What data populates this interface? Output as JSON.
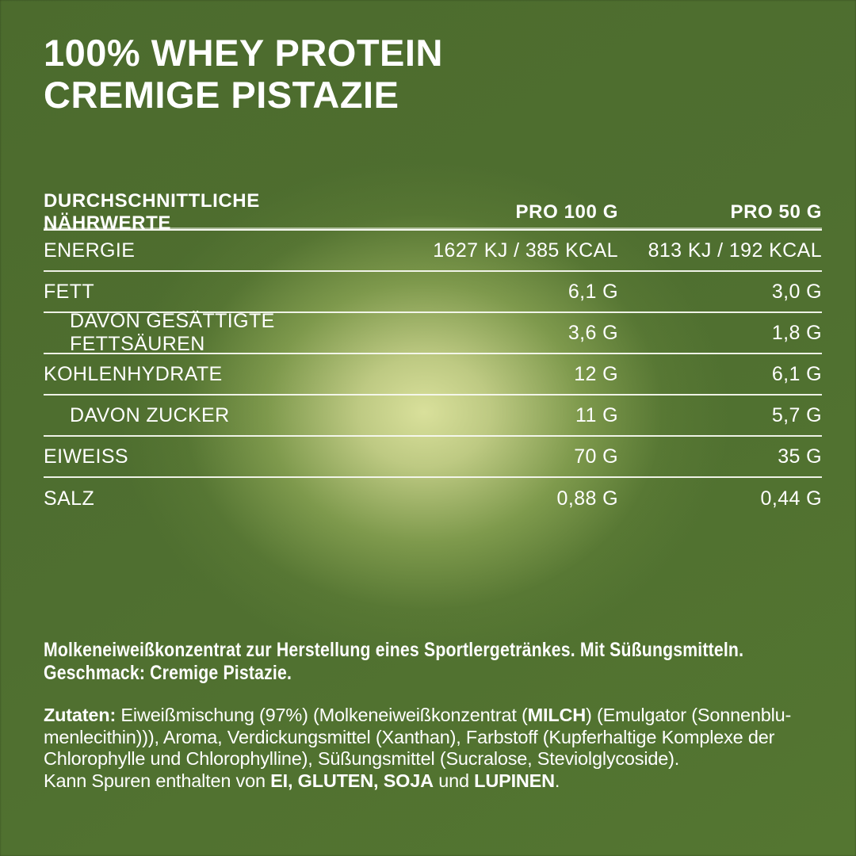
{
  "page": {
    "background_color": "#4f7030",
    "glow_color": "#d9e09b",
    "text_color": "#ffffff",
    "rule_color": "#f6f8f0"
  },
  "title": {
    "line1": "100% WHEY PROTEIN",
    "line2": "CREMIGE PISTAZIE"
  },
  "nutrition_table": {
    "headers": {
      "label": "DURCHSCHNITTLICHE NÄHRWERTE",
      "per100": "PRO 100 G",
      "per50": "PRO 50 G"
    },
    "rows": [
      {
        "label": "ENERGIE",
        "per100": "1627 KJ / 385 KCAL",
        "per50": "813 KJ / 192 KCAL",
        "indent": false
      },
      {
        "label": "FETT",
        "per100": "6,1 G",
        "per50": "3,0 G",
        "indent": false
      },
      {
        "label": "DAVON GESÄTTIGTE FETTSÄUREN",
        "per100": "3,6 G",
        "per50": "1,8 G",
        "indent": true
      },
      {
        "label": "KOHLENHYDRATE",
        "per100": "12 G",
        "per50": "6,1 G",
        "indent": false
      },
      {
        "label": "DAVON ZUCKER",
        "per100": "11 G",
        "per50": "5,7 G",
        "indent": true
      },
      {
        "label": "EIWEISS",
        "per100": "70 G",
        "per50": "35 G",
        "indent": false
      },
      {
        "label": "SALZ",
        "per100": "0,88 G",
        "per50": "0,44 G",
        "indent": false
      }
    ]
  },
  "statement": {
    "line1": "Molkeneiweißkonzentrat zur Herstellung eines Sportlergetränkes. Mit Süßungsmitteln.",
    "line2": "Geschmack: Cremige Pistazie."
  },
  "ingredients": {
    "segments": [
      {
        "text": "Zutaten:",
        "bold": true
      },
      {
        "text": " Eiweißmischung (97%) (Molkeneiweißkonzentrat (",
        "bold": false
      },
      {
        "text": "MILCH",
        "bold": true
      },
      {
        "text": ") (Emulgator (Sonnenblu­menlecithin))), Aroma, Verdickungsmittel (Xanthan), Farbstoff (Kupferhaltige Komplexe der Chlorophylle und Chlorophylline), Süßungsmittel (Sucralose, Steviolglycoside).",
        "bold": false
      }
    ]
  },
  "allergen_trace": {
    "segments": [
      {
        "text": "Kann Spuren enthalten von ",
        "bold": false
      },
      {
        "text": "EI, GLUTEN, SOJA",
        "bold": true
      },
      {
        "text": " und ",
        "bold": false
      },
      {
        "text": "LUPINEN",
        "bold": true
      },
      {
        "text": ".",
        "bold": false
      }
    ]
  }
}
